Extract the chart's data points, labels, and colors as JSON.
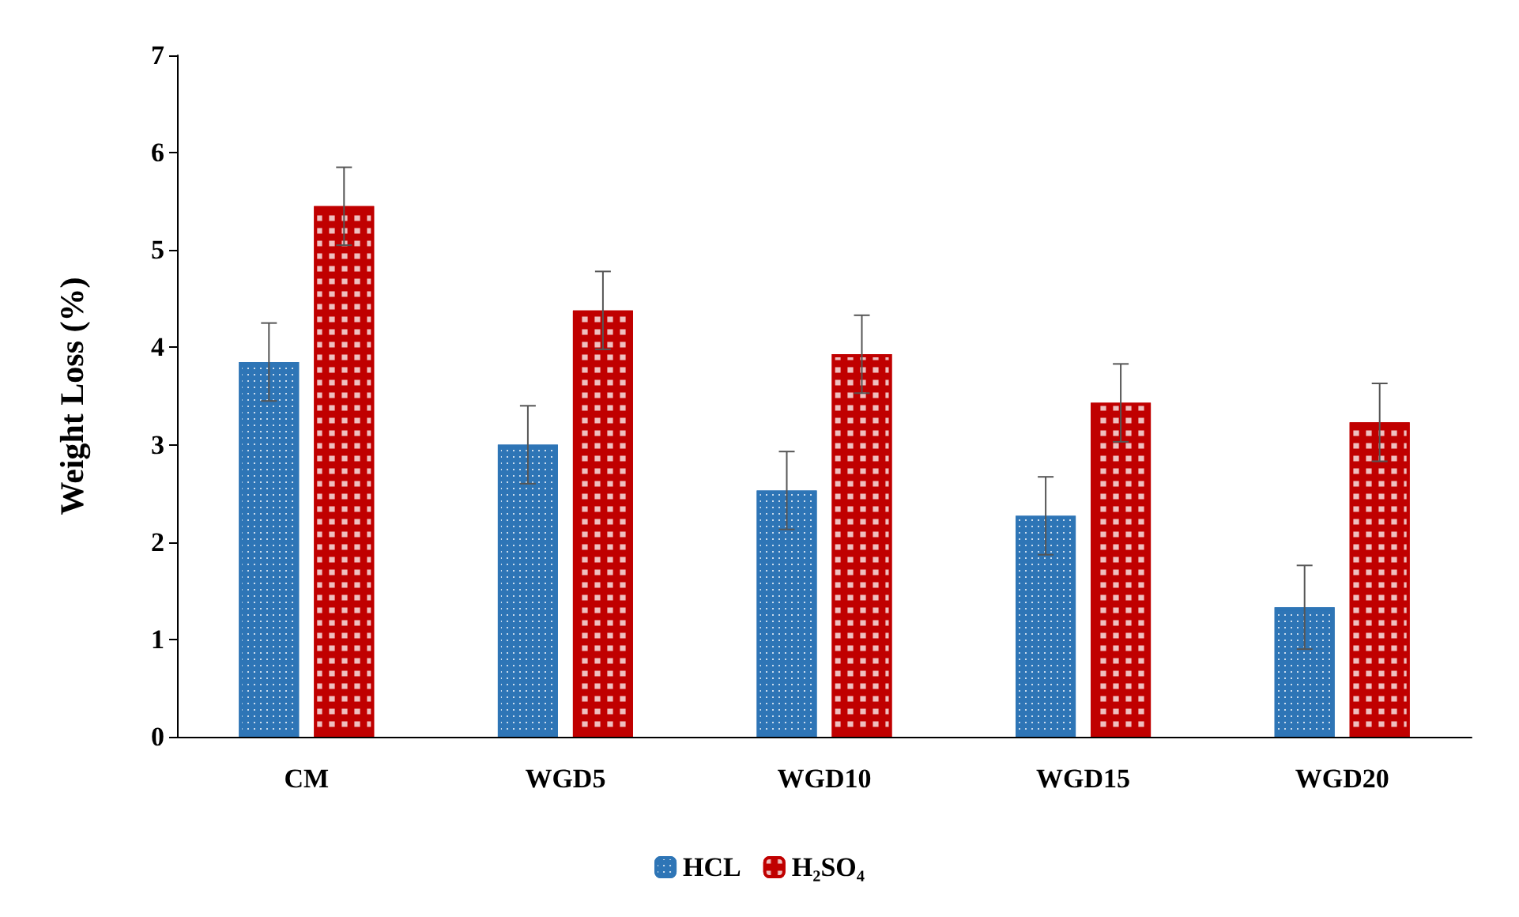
{
  "chart_data": {
    "type": "bar",
    "ylabel": "Weight Loss (%)",
    "categories": [
      "CM",
      "WGD5",
      "WGD10",
      "WGD15",
      "WGD20"
    ],
    "series": [
      {
        "name": "HCL",
        "color": "#2e75b6",
        "values": [
          3.85,
          3.0,
          2.53,
          2.27,
          1.33
        ],
        "errors": [
          0.4,
          0.4,
          0.4,
          0.4,
          0.43
        ]
      },
      {
        "name": "H₂SO₄",
        "color": "#c00000",
        "values": [
          5.45,
          4.38,
          3.93,
          3.43,
          3.23
        ],
        "errors": [
          0.4,
          0.4,
          0.4,
          0.4,
          0.4
        ]
      }
    ],
    "ylim": [
      0,
      7
    ],
    "yticks": [
      0,
      1,
      2,
      3,
      4,
      5,
      6,
      7
    ],
    "grid": false,
    "legend": "bottom"
  }
}
